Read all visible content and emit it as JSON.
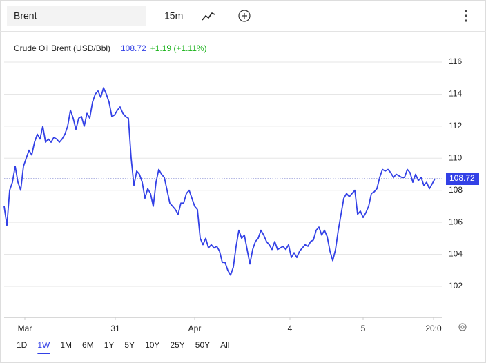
{
  "header": {
    "symbol": "Brent",
    "interval": "15m"
  },
  "chart_data": {
    "type": "line",
    "title": "Crude Oil Brent (USD/Bbl)",
    "last": 108.72,
    "change_label": "+1.19 (+1.11%)",
    "x": [
      0,
      1,
      2,
      3,
      4,
      5,
      6,
      7,
      8,
      9,
      10,
      11,
      12,
      13,
      14,
      15,
      16,
      17,
      18,
      19,
      20,
      21,
      22,
      23,
      24,
      25,
      26,
      27,
      28,
      29,
      30,
      31,
      32,
      33,
      34,
      35,
      36,
      37,
      38,
      39,
      40,
      41,
      42,
      43,
      44,
      45,
      46,
      47,
      48,
      49,
      50,
      51,
      52,
      53,
      54,
      55,
      56,
      57,
      58,
      59,
      60,
      61,
      62,
      63,
      64,
      65,
      66,
      67,
      68,
      69,
      70,
      71,
      72,
      73,
      74,
      75,
      76,
      77,
      78,
      79,
      80,
      81,
      82,
      83,
      84,
      85,
      86,
      87,
      88,
      89,
      90,
      91,
      92,
      93,
      94,
      95,
      96,
      97,
      98,
      99,
      100,
      101,
      102,
      103,
      104,
      105,
      106,
      107,
      108,
      109,
      110,
      111,
      112,
      113,
      114,
      115,
      116,
      117,
      118,
      119,
      120,
      121,
      122,
      123,
      124,
      125,
      126,
      127,
      128,
      129,
      130,
      131,
      132,
      133,
      134,
      135,
      136,
      137,
      138,
      139,
      140,
      141,
      142,
      143,
      144,
      145,
      146,
      147,
      148,
      149,
      150,
      151,
      152,
      153,
      154,
      155,
      156
    ],
    "series": [
      {
        "name": "Crude Oil Brent",
        "color": "#3341e6",
        "values": [
          107,
          105.8,
          108,
          108.5,
          109.5,
          108.5,
          108,
          109.5,
          110,
          110.5,
          110.2,
          111,
          111.5,
          111.2,
          112,
          111,
          111.2,
          111,
          111.3,
          111.2,
          111,
          111.2,
          111.5,
          112,
          113,
          112.5,
          111.8,
          112.5,
          112.6,
          112,
          112.8,
          112.5,
          113.5,
          114,
          114.2,
          113.8,
          114.4,
          114,
          113.5,
          112.6,
          112.7,
          113,
          113.2,
          112.8,
          112.6,
          112.5,
          110,
          108.3,
          109.2,
          109,
          108.5,
          107.5,
          108.1,
          107.8,
          107,
          108.5,
          109.3,
          109,
          108.8,
          108,
          107.2,
          107,
          106.8,
          106.5,
          107.2,
          107.2,
          107.8,
          108,
          107.5,
          107,
          106.8,
          105,
          104.6,
          105,
          104.4,
          104.6,
          104.4,
          104.5,
          104.2,
          103.5,
          103.5,
          103,
          102.7,
          103.2,
          104.5,
          105.5,
          105,
          105.2,
          104.3,
          103.4,
          104.3,
          104.8,
          105,
          105.5,
          105.2,
          104.8,
          104.6,
          104.3,
          104.8,
          104.3,
          104.4,
          104.5,
          104.3,
          104.6,
          103.8,
          104.1,
          103.8,
          104.2,
          104.4,
          104.6,
          104.5,
          104.8,
          104.9,
          105.5,
          105.7,
          105.2,
          105.5,
          105.1,
          104.2,
          103.6,
          104.3,
          105.5,
          106.5,
          107.5,
          107.8,
          107.6,
          107.8,
          108,
          106.5,
          106.7,
          106.3,
          106.6,
          107,
          107.8,
          107.9,
          108.1,
          108.8,
          109.3,
          109.2,
          109.3,
          109.1,
          108.8,
          109,
          108.9,
          108.8,
          108.8,
          109.3,
          109.1,
          108.5,
          109,
          108.6,
          108.8,
          108.3,
          108.5,
          108.1,
          108.4,
          108.72
        ]
      }
    ],
    "xlim": [
      0,
      156
    ],
    "xticks": [
      {
        "value": 7.5,
        "label": "Mar"
      },
      {
        "value": 40.25,
        "label": "31"
      },
      {
        "value": 69,
        "label": "Apr"
      },
      {
        "value": 103.5,
        "label": "4"
      },
      {
        "value": 130,
        "label": "5"
      },
      {
        "value": 155.5,
        "label": "20:0"
      }
    ],
    "ylim": [
      100.06,
      117.94
    ],
    "yticks": [
      102,
      104,
      106,
      108,
      110,
      112,
      114,
      116
    ],
    "grid": true
  },
  "ranges": [
    "1D",
    "1W",
    "1M",
    "6M",
    "1Y",
    "5Y",
    "10Y",
    "25Y",
    "50Y",
    "All"
  ],
  "selected_range": "1W"
}
